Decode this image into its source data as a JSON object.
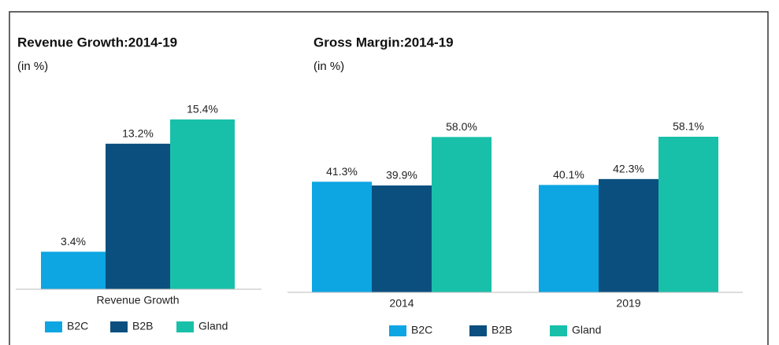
{
  "chart_data": [
    {
      "type": "bar",
      "title": "Revenue Growth:2014-19",
      "subtitle": "(in %)",
      "categories": [
        "Revenue Growth"
      ],
      "series": [
        {
          "name": "B2C",
          "color": "#0ea5e3",
          "values": [
            3.4
          ],
          "value_labels": [
            "3.4%"
          ]
        },
        {
          "name": "B2B",
          "color": "#0b4f7f",
          "values": [
            13.2
          ],
          "value_labels": [
            "13.2%"
          ]
        },
        {
          "name": "Gland",
          "color": "#18c0aa",
          "values": [
            15.4
          ],
          "value_labels": [
            "15.4%"
          ]
        }
      ]
    },
    {
      "type": "bar",
      "title": "Gross Margin:2014-19",
      "subtitle": "(in %)",
      "categories": [
        "2014",
        "2019"
      ],
      "series": [
        {
          "name": "B2C",
          "color": "#0ea5e3",
          "values": [
            41.3,
            40.1
          ],
          "value_labels": [
            "41.3%",
            "40.1%"
          ]
        },
        {
          "name": "B2B",
          "color": "#0b4f7f",
          "values": [
            39.9,
            42.3
          ],
          "value_labels": [
            "39.9%",
            "42.3%"
          ]
        },
        {
          "name": "Gland",
          "color": "#18c0aa",
          "values": [
            58.0,
            58.1
          ],
          "value_labels": [
            "58.0%",
            "58.1%"
          ]
        }
      ]
    }
  ]
}
